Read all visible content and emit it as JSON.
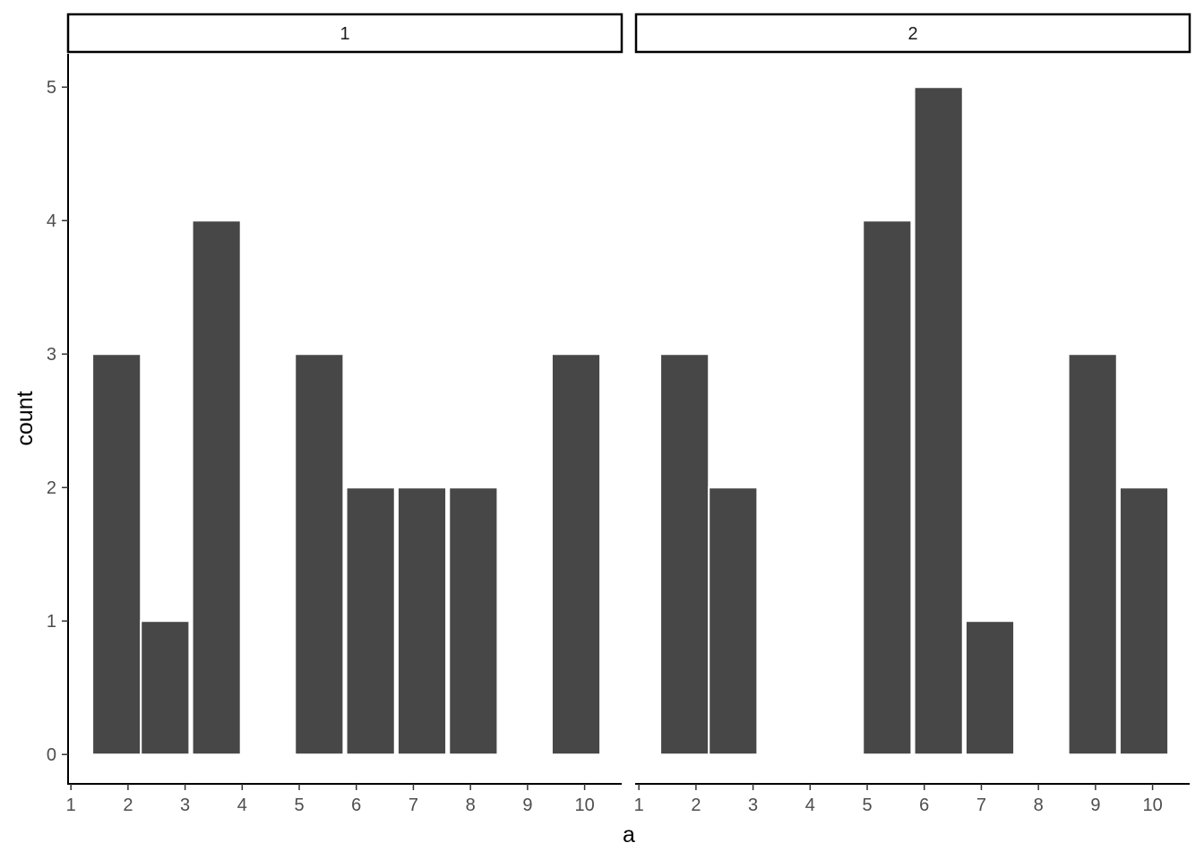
{
  "chart_data": {
    "type": "bar",
    "xlabel": "a",
    "ylabel": "count",
    "ylim": [
      -0.22,
      5.25
    ],
    "xlim": [
      0.95,
      10.65
    ],
    "bar_color": "#474747",
    "bar_width": 0.85,
    "x_ticks": [
      "1",
      "2",
      "3",
      "4",
      "5",
      "6",
      "7",
      "8",
      "9",
      "10"
    ],
    "y_ticks": [
      "0",
      "1",
      "2",
      "3",
      "4",
      "5"
    ],
    "panels": [
      {
        "strip_label": "1",
        "bars": [
          {
            "x": 1.8,
            "count": 3
          },
          {
            "x": 2.65,
            "count": 1
          },
          {
            "x": 3.55,
            "count": 4
          },
          {
            "x": 5.35,
            "count": 3
          },
          {
            "x": 6.25,
            "count": 2
          },
          {
            "x": 7.15,
            "count": 2
          },
          {
            "x": 8.05,
            "count": 2
          },
          {
            "x": 9.85,
            "count": 3
          }
        ]
      },
      {
        "strip_label": "2",
        "bars": [
          {
            "x": 1.8,
            "count": 3
          },
          {
            "x": 2.65,
            "count": 2
          },
          {
            "x": 5.35,
            "count": 4
          },
          {
            "x": 6.25,
            "count": 5
          },
          {
            "x": 7.15,
            "count": 1
          },
          {
            "x": 8.95,
            "count": 3
          },
          {
            "x": 9.85,
            "count": 2
          }
        ]
      }
    ]
  }
}
